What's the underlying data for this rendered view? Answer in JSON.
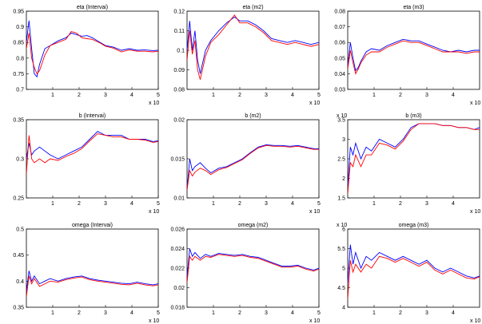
{
  "colors": {
    "series1": "#0000ff",
    "series2": "#ff0000",
    "axis": "#000000"
  },
  "chart_data": [
    {
      "type": "line",
      "title": "eta (Intervai)",
      "xlim": [
        0,
        5
      ],
      "ylim": [
        0.7,
        0.95
      ],
      "yticks": [
        "0.7",
        "0.75",
        "0.8",
        "0.85",
        "0.9",
        "0.95"
      ],
      "xticks": [
        "1",
        "2",
        "3",
        "4",
        "5"
      ],
      "y_exponent": "",
      "x_exponent": "x 10",
      "x": [
        0,
        0.1,
        0.2,
        0.3,
        0.4,
        0.5,
        0.7,
        0.9,
        1.2,
        1.5,
        1.7,
        1.9,
        2.1,
        2.3,
        2.5,
        2.8,
        3.0,
        3.3,
        3.6,
        3.9,
        4.2,
        4.5,
        4.8,
        5.0
      ],
      "series": [
        {
          "values": [
            0.85,
            0.92,
            0.83,
            0.75,
            0.74,
            0.78,
            0.83,
            0.84,
            0.855,
            0.865,
            0.88,
            0.875,
            0.87,
            0.872,
            0.865,
            0.85,
            0.84,
            0.835,
            0.825,
            0.83,
            0.825,
            0.826,
            0.824,
            0.825
          ]
        },
        {
          "values": [
            0.83,
            0.88,
            0.8,
            0.77,
            0.75,
            0.76,
            0.81,
            0.84,
            0.85,
            0.86,
            0.885,
            0.88,
            0.865,
            0.862,
            0.86,
            0.848,
            0.838,
            0.832,
            0.82,
            0.826,
            0.822,
            0.822,
            0.82,
            0.822
          ]
        }
      ]
    },
    {
      "type": "line",
      "title": "eta (m2)",
      "xlim": [
        0,
        5
      ],
      "ylim": [
        0.08,
        0.12
      ],
      "yticks": [
        "0.08",
        "0.09",
        "0.1",
        "0.11",
        "0.12"
      ],
      "xticks": [
        "1",
        "2",
        "3",
        "4",
        "5"
      ],
      "y_exponent": "",
      "x_exponent": "x 10",
      "x": [
        0,
        0.1,
        0.2,
        0.3,
        0.4,
        0.5,
        0.7,
        0.9,
        1.2,
        1.5,
        1.8,
        2.0,
        2.3,
        2.6,
        2.9,
        3.2,
        3.5,
        3.8,
        4.1,
        4.4,
        4.7,
        5.0
      ],
      "series": [
        {
          "values": [
            0.1,
            0.115,
            0.1,
            0.11,
            0.095,
            0.088,
            0.1,
            0.105,
            0.11,
            0.114,
            0.117,
            0.115,
            0.115,
            0.113,
            0.11,
            0.106,
            0.105,
            0.104,
            0.105,
            0.104,
            0.103,
            0.104
          ]
        },
        {
          "values": [
            0.095,
            0.11,
            0.098,
            0.105,
            0.09,
            0.085,
            0.097,
            0.104,
            0.108,
            0.113,
            0.118,
            0.114,
            0.114,
            0.112,
            0.109,
            0.105,
            0.104,
            0.103,
            0.104,
            0.103,
            0.102,
            0.103
          ]
        }
      ]
    },
    {
      "type": "line",
      "title": "eta (m3)",
      "xlim": [
        0,
        5
      ],
      "ylim": [
        0.03,
        0.08
      ],
      "yticks": [
        "0.03",
        "0.04",
        "0.05",
        "0.06",
        "0.07",
        "0.08"
      ],
      "xticks": [
        "1",
        "2",
        "3",
        "4"
      ],
      "y_exponent": "",
      "x_exponent": "x 10",
      "x": [
        0,
        0.1,
        0.2,
        0.3,
        0.4,
        0.5,
        0.7,
        0.9,
        1.2,
        1.5,
        1.8,
        2.1,
        2.4,
        2.7,
        3.0,
        3.3,
        3.6,
        3.9,
        4.2,
        4.5,
        4.8,
        5.0
      ],
      "series": [
        {
          "values": [
            0.045,
            0.06,
            0.05,
            0.042,
            0.044,
            0.048,
            0.054,
            0.056,
            0.055,
            0.058,
            0.06,
            0.062,
            0.061,
            0.061,
            0.059,
            0.057,
            0.055,
            0.054,
            0.055,
            0.054,
            0.055,
            0.055
          ]
        },
        {
          "values": [
            0.043,
            0.055,
            0.047,
            0.04,
            0.043,
            0.047,
            0.052,
            0.054,
            0.054,
            0.057,
            0.059,
            0.061,
            0.06,
            0.06,
            0.058,
            0.056,
            0.054,
            0.054,
            0.054,
            0.053,
            0.054,
            0.054
          ]
        }
      ]
    },
    {
      "type": "line",
      "title": "b (Intervai)",
      "xlim": [
        0,
        5
      ],
      "ylim": [
        0.25,
        0.35
      ],
      "yticks": [
        "0.25",
        "0.3",
        "0.35"
      ],
      "xticks": [
        "1",
        "2",
        "3",
        "4",
        "5"
      ],
      "y_exponent": "",
      "x_exponent": "x 10",
      "x": [
        0,
        0.1,
        0.2,
        0.3,
        0.5,
        0.7,
        0.9,
        1.2,
        1.5,
        1.8,
        2.1,
        2.4,
        2.7,
        3.0,
        3.3,
        3.6,
        3.9,
        4.2,
        4.5,
        4.8,
        5.0
      ],
      "series": [
        {
          "values": [
            0.3,
            0.32,
            0.305,
            0.31,
            0.315,
            0.31,
            0.305,
            0.3,
            0.305,
            0.31,
            0.315,
            0.325,
            0.335,
            0.33,
            0.33,
            0.33,
            0.325,
            0.325,
            0.325,
            0.322,
            0.323
          ]
        },
        {
          "values": [
            0.28,
            0.33,
            0.3,
            0.295,
            0.3,
            0.295,
            0.3,
            0.298,
            0.303,
            0.307,
            0.313,
            0.323,
            0.332,
            0.33,
            0.328,
            0.328,
            0.325,
            0.325,
            0.324,
            0.321,
            0.322
          ]
        }
      ]
    },
    {
      "type": "line",
      "title": "b (m2)",
      "xlim": [
        0,
        5
      ],
      "ylim": [
        0.01,
        0.02
      ],
      "yticks": [
        "0.01",
        "0.015",
        "0.02"
      ],
      "xticks": [
        "1",
        "2",
        "3",
        "4",
        "5"
      ],
      "y_exponent": "",
      "x_exponent": "x 10",
      "x": [
        0,
        0.1,
        0.2,
        0.3,
        0.5,
        0.7,
        0.9,
        1.2,
        1.5,
        1.8,
        2.1,
        2.4,
        2.7,
        3.0,
        3.3,
        3.6,
        3.9,
        4.2,
        4.5,
        4.8,
        5.0
      ],
      "series": [
        {
          "values": [
            0.011,
            0.015,
            0.0135,
            0.014,
            0.0145,
            0.0138,
            0.0132,
            0.0138,
            0.014,
            0.0145,
            0.015,
            0.0158,
            0.0165,
            0.0168,
            0.0167,
            0.0167,
            0.0166,
            0.0167,
            0.0165,
            0.0163,
            0.0163
          ]
        },
        {
          "values": [
            0.011,
            0.0135,
            0.0128,
            0.0133,
            0.0138,
            0.0135,
            0.013,
            0.0136,
            0.0139,
            0.0144,
            0.0149,
            0.0157,
            0.0164,
            0.0167,
            0.0166,
            0.0166,
            0.0165,
            0.0166,
            0.0164,
            0.0162,
            0.0162
          ]
        }
      ]
    },
    {
      "type": "line",
      "title": "b (m3)",
      "xlim": [
        0,
        5
      ],
      "ylim": [
        1.5,
        3.5
      ],
      "yticks": [
        "1.5",
        "2",
        "2.5",
        "3",
        "3.5"
      ],
      "xticks": [
        "1",
        "2",
        "3",
        "4"
      ],
      "y_exponent": "x 10",
      "x_exponent": "x 10",
      "x": [
        0,
        0.1,
        0.2,
        0.3,
        0.5,
        0.7,
        0.9,
        1.2,
        1.5,
        1.8,
        2.1,
        2.4,
        2.7,
        3.0,
        3.3,
        3.6,
        3.9,
        4.2,
        4.5,
        4.8,
        5.0
      ],
      "series": [
        {
          "values": [
            1.8,
            2.8,
            2.6,
            2.9,
            2.5,
            2.8,
            2.7,
            3.0,
            2.9,
            2.8,
            3.0,
            3.3,
            3.4,
            3.4,
            3.4,
            3.35,
            3.35,
            3.3,
            3.3,
            3.25,
            3.3
          ]
        },
        {
          "values": [
            1.6,
            2.4,
            2.3,
            2.6,
            2.3,
            2.6,
            2.6,
            2.9,
            2.85,
            2.75,
            2.95,
            3.25,
            3.4,
            3.4,
            3.4,
            3.35,
            3.35,
            3.3,
            3.3,
            3.25,
            3.25
          ]
        }
      ]
    },
    {
      "type": "line",
      "title": "omega (Intervai)",
      "xlim": [
        0,
        5
      ],
      "ylim": [
        0.35,
        0.5
      ],
      "yticks": [
        "0.35",
        "0.4",
        "0.45",
        "0.5"
      ],
      "xticks": [
        "1",
        "2",
        "3",
        "4",
        "5"
      ],
      "y_exponent": "",
      "x_exponent": "x 10",
      "x": [
        0,
        0.1,
        0.2,
        0.3,
        0.5,
        0.7,
        0.9,
        1.2,
        1.5,
        1.8,
        2.1,
        2.4,
        2.7,
        3.0,
        3.3,
        3.6,
        3.9,
        4.2,
        4.5,
        4.8,
        5.0
      ],
      "series": [
        {
          "values": [
            0.38,
            0.42,
            0.4,
            0.41,
            0.395,
            0.4,
            0.405,
            0.4,
            0.405,
            0.408,
            0.41,
            0.405,
            0.402,
            0.4,
            0.398,
            0.396,
            0.395,
            0.398,
            0.395,
            0.393,
            0.395
          ]
        },
        {
          "values": [
            0.37,
            0.41,
            0.395,
            0.405,
            0.39,
            0.395,
            0.4,
            0.398,
            0.403,
            0.406,
            0.408,
            0.403,
            0.4,
            0.398,
            0.396,
            0.394,
            0.393,
            0.396,
            0.393,
            0.391,
            0.393
          ]
        }
      ]
    },
    {
      "type": "line",
      "title": "omega (m2)",
      "xlim": [
        0,
        5
      ],
      "ylim": [
        0.018,
        0.026
      ],
      "yticks": [
        "0.018",
        "0.02",
        "0.022",
        "0.024",
        "0.026"
      ],
      "xticks": [
        "1",
        "2",
        "3",
        "4",
        "5"
      ],
      "y_exponent": "",
      "x_exponent": "x 10",
      "x": [
        0,
        0.1,
        0.2,
        0.3,
        0.5,
        0.7,
        0.9,
        1.2,
        1.5,
        1.8,
        2.1,
        2.4,
        2.7,
        3.0,
        3.3,
        3.6,
        3.9,
        4.2,
        4.5,
        4.8,
        5.0
      ],
      "series": [
        {
          "values": [
            0.021,
            0.024,
            0.0232,
            0.0236,
            0.023,
            0.0234,
            0.0232,
            0.0235,
            0.0234,
            0.0233,
            0.0234,
            0.0232,
            0.0231,
            0.0228,
            0.0225,
            0.0222,
            0.0222,
            0.0223,
            0.022,
            0.0218,
            0.022
          ]
        },
        {
          "values": [
            0.0205,
            0.0232,
            0.0228,
            0.0232,
            0.0228,
            0.0232,
            0.0231,
            0.0234,
            0.0233,
            0.0232,
            0.0233,
            0.0231,
            0.023,
            0.0227,
            0.0224,
            0.0221,
            0.0221,
            0.0222,
            0.0219,
            0.0217,
            0.0219
          ]
        }
      ]
    },
    {
      "type": "line",
      "title": "omega (m3)",
      "xlim": [
        0,
        5
      ],
      "ylim": [
        4,
        6
      ],
      "yticks": [
        "4",
        "4.5",
        "5",
        "5.5",
        "6"
      ],
      "xticks": [
        "1",
        "2",
        "3",
        "4"
      ],
      "y_exponent": "x 10",
      "x_exponent": "x 10",
      "x": [
        0,
        0.1,
        0.2,
        0.3,
        0.5,
        0.7,
        0.9,
        1.2,
        1.5,
        1.8,
        2.1,
        2.4,
        2.7,
        3.0,
        3.3,
        3.6,
        3.9,
        4.2,
        4.5,
        4.8,
        5.0
      ],
      "series": [
        {
          "values": [
            4.6,
            5.6,
            5.1,
            5.4,
            5.0,
            5.3,
            5.2,
            5.4,
            5.3,
            5.2,
            5.3,
            5.2,
            5.1,
            5.2,
            5.0,
            4.9,
            5.0,
            4.9,
            4.8,
            4.75,
            4.8
          ]
        },
        {
          "values": [
            4.2,
            5.2,
            4.9,
            5.1,
            4.9,
            5.1,
            5.0,
            5.3,
            5.25,
            5.15,
            5.25,
            5.15,
            5.05,
            5.15,
            4.95,
            4.85,
            4.95,
            4.85,
            4.75,
            4.72,
            4.78
          ]
        }
      ]
    }
  ]
}
